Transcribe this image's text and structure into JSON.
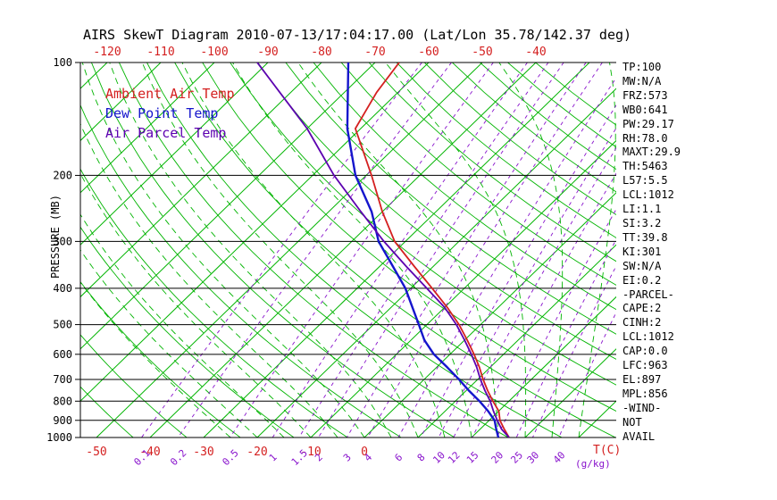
{
  "title": "AIRS SkewT Diagram 2010-07-13/17:04:17.00 (Lat/Lon 35.78/142.37 deg)",
  "colors": {
    "red": "#d42020",
    "blue": "#1515cc",
    "purple": "#8812cc",
    "parcel": "#5c00b0",
    "green": "#00b400",
    "black": "#000000"
  },
  "legend": [
    {
      "label": "Ambient Air Temp",
      "color_key": "red"
    },
    {
      "label": "Dew Point Temp",
      "color_key": "blue"
    },
    {
      "label": "Air Parcel Temp",
      "color_key": "parcel"
    }
  ],
  "axes": {
    "pressure_label": "PRESSURE (MB)",
    "pressure_ticks": [
      100,
      200,
      300,
      400,
      500,
      600,
      700,
      800,
      900,
      1000
    ],
    "top_temp_ticks": [
      -120,
      -110,
      -100,
      -90,
      -80,
      -70,
      -60,
      -50,
      -40
    ],
    "bottom_temp_ticks": [
      -50,
      -40,
      -30,
      -20,
      -10,
      0
    ],
    "temp_unit_label": "T(C)",
    "mixing_ratio_values": [
      0.1,
      0.2,
      0.5,
      1,
      1.5,
      2,
      3,
      4,
      6,
      8,
      10,
      12,
      15,
      20,
      25,
      30,
      40
    ],
    "mixing_unit_label": "(g/kg)"
  },
  "stats_panel": [
    "TP:100",
    "MW:N/A",
    "FRZ:573",
    "WB0:641",
    "PW:29.17",
    "RH:78.0",
    "MAXT:29.9",
    "TH:5463",
    "L57:5.5",
    "LCL:1012",
    "LI:1.1",
    "SI:3.2",
    "TT:39.8",
    "KI:301",
    "SW:N/A",
    "EI:0.2",
    "-PARCEL-",
    "CAPE:2",
    "CINH:2",
    "LCL:1012",
    "CAP:0.0",
    "LFC:963",
    "EL:897",
    "MPL:856",
    "-WIND-",
    "NOT",
    "AVAIL"
  ],
  "chart_data": {
    "type": "line",
    "subtype": "skewt_log_p",
    "title": "AIRS SkewT Diagram 2010-07-13/17:04:17.00 (Lat/Lon 35.78/142.37 deg)",
    "ylabel": "PRESSURE (MB)",
    "xlabel": "T(C)",
    "pressure_range_mb": [
      100,
      1000
    ],
    "pressure_scale": "log",
    "skewed_temperature_axis": true,
    "top_axis_range_c": [
      -120,
      -40
    ],
    "bottom_axis_range_c": [
      -50,
      0
    ],
    "grid": {
      "isotherms_c_step": 10,
      "dry_adiabats": true,
      "moist_adiabats": true,
      "mixing_ratio_g_per_kg": [
        0.1,
        0.2,
        0.5,
        1,
        1.5,
        2,
        3,
        4,
        6,
        8,
        10,
        12,
        15,
        20,
        25,
        30,
        40
      ]
    },
    "legend_position": "upper-left-inside",
    "series": [
      {
        "name": "Ambient Air Temp",
        "color": "red",
        "points": [
          [
            1000,
            27
          ],
          [
            950,
            24.5
          ],
          [
            900,
            22
          ],
          [
            850,
            20
          ],
          [
            800,
            17
          ],
          [
            750,
            14
          ],
          [
            700,
            11
          ],
          [
            650,
            8
          ],
          [
            600,
            4.5
          ],
          [
            550,
            0.5
          ],
          [
            500,
            -4
          ],
          [
            450,
            -9.5
          ],
          [
            400,
            -16
          ],
          [
            350,
            -23.5
          ],
          [
            300,
            -32
          ],
          [
            250,
            -40
          ],
          [
            200,
            -49
          ],
          [
            150,
            -61
          ],
          [
            120,
            -64
          ],
          [
            100,
            -65.5
          ]
        ]
      },
      {
        "name": "Dew Point Temp",
        "color": "blue",
        "points": [
          [
            1000,
            25
          ],
          [
            950,
            23
          ],
          [
            900,
            21
          ],
          [
            850,
            18
          ],
          [
            800,
            14.5
          ],
          [
            750,
            10.5
          ],
          [
            700,
            6.5
          ],
          [
            650,
            2
          ],
          [
            600,
            -3
          ],
          [
            550,
            -7.5
          ],
          [
            500,
            -11.5
          ],
          [
            450,
            -16
          ],
          [
            400,
            -21
          ],
          [
            350,
            -27.5
          ],
          [
            300,
            -35
          ],
          [
            250,
            -42
          ],
          [
            200,
            -52
          ],
          [
            150,
            -62.5
          ],
          [
            100,
            -75
          ]
        ]
      },
      {
        "name": "Air Parcel Temp",
        "color": "parcel",
        "points": [
          [
            1000,
            27
          ],
          [
            950,
            24
          ],
          [
            900,
            21.5
          ],
          [
            850,
            19
          ],
          [
            800,
            16.5
          ],
          [
            750,
            13.5
          ],
          [
            700,
            10.5
          ],
          [
            650,
            7.5
          ],
          [
            600,
            4
          ],
          [
            550,
            0
          ],
          [
            500,
            -4.5
          ],
          [
            450,
            -10
          ],
          [
            400,
            -17
          ],
          [
            350,
            -25
          ],
          [
            300,
            -34
          ],
          [
            250,
            -44
          ],
          [
            200,
            -56
          ],
          [
            150,
            -70
          ],
          [
            100,
            -92
          ]
        ]
      }
    ]
  }
}
